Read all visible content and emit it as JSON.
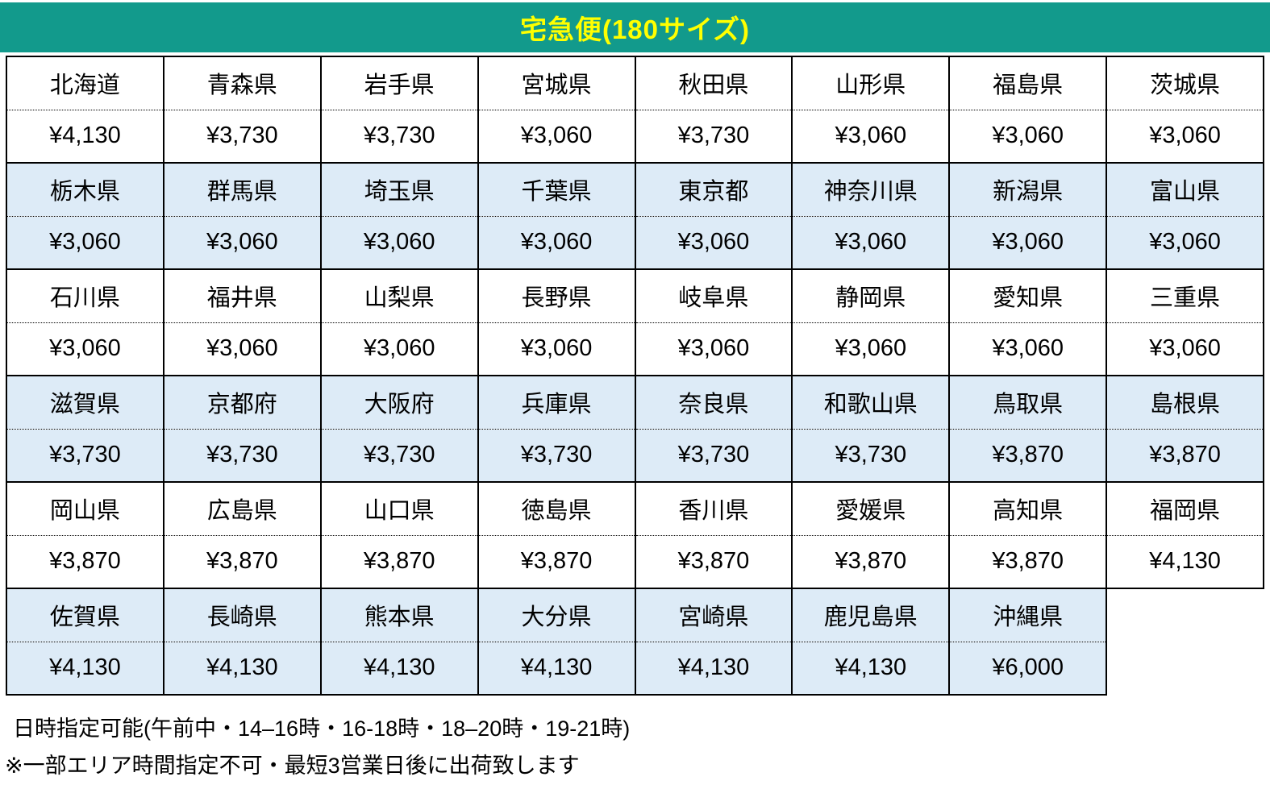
{
  "title": "宅急便(180サイズ)",
  "colors": {
    "header_bg": "#129A8C",
    "title_text": "#FFFF00",
    "shaded_row_bg": "#DDEBF7",
    "border": "#000000",
    "cell_text": "#000000"
  },
  "table": {
    "row_pairs": [
      {
        "shaded": false,
        "cells": [
          {
            "name": "北海道",
            "price": "¥4,130"
          },
          {
            "name": "青森県",
            "price": "¥3,730"
          },
          {
            "name": "岩手県",
            "price": "¥3,730"
          },
          {
            "name": "宮城県",
            "price": "¥3,060"
          },
          {
            "name": "秋田県",
            "price": "¥3,730"
          },
          {
            "name": "山形県",
            "price": "¥3,060"
          },
          {
            "name": "福島県",
            "price": "¥3,060"
          },
          {
            "name": "茨城県",
            "price": "¥3,060"
          }
        ]
      },
      {
        "shaded": true,
        "cells": [
          {
            "name": "栃木県",
            "price": "¥3,060"
          },
          {
            "name": "群馬県",
            "price": "¥3,060"
          },
          {
            "name": "埼玉県",
            "price": "¥3,060"
          },
          {
            "name": "千葉県",
            "price": "¥3,060"
          },
          {
            "name": "東京都",
            "price": "¥3,060"
          },
          {
            "name": "神奈川県",
            "price": "¥3,060"
          },
          {
            "name": "新潟県",
            "price": "¥3,060"
          },
          {
            "name": "富山県",
            "price": "¥3,060"
          }
        ]
      },
      {
        "shaded": false,
        "cells": [
          {
            "name": "石川県",
            "price": "¥3,060"
          },
          {
            "name": "福井県",
            "price": "¥3,060"
          },
          {
            "name": "山梨県",
            "price": "¥3,060"
          },
          {
            "name": "長野県",
            "price": "¥3,060"
          },
          {
            "name": "岐阜県",
            "price": "¥3,060"
          },
          {
            "name": "静岡県",
            "price": "¥3,060"
          },
          {
            "name": "愛知県",
            "price": "¥3,060"
          },
          {
            "name": "三重県",
            "price": "¥3,060"
          }
        ]
      },
      {
        "shaded": true,
        "cells": [
          {
            "name": "滋賀県",
            "price": "¥3,730"
          },
          {
            "name": "京都府",
            "price": "¥3,730"
          },
          {
            "name": "大阪府",
            "price": "¥3,730"
          },
          {
            "name": "兵庫県",
            "price": "¥3,730"
          },
          {
            "name": "奈良県",
            "price": "¥3,730"
          },
          {
            "name": "和歌山県",
            "price": "¥3,730"
          },
          {
            "name": "鳥取県",
            "price": "¥3,870"
          },
          {
            "name": "島根県",
            "price": "¥3,870"
          }
        ]
      },
      {
        "shaded": false,
        "cells": [
          {
            "name": "岡山県",
            "price": "¥3,870"
          },
          {
            "name": "広島県",
            "price": "¥3,870"
          },
          {
            "name": "山口県",
            "price": "¥3,870"
          },
          {
            "name": "徳島県",
            "price": "¥3,870"
          },
          {
            "name": "香川県",
            "price": "¥3,870"
          },
          {
            "name": "愛媛県",
            "price": "¥3,870"
          },
          {
            "name": "高知県",
            "price": "¥3,870"
          },
          {
            "name": "福岡県",
            "price": "¥4,130"
          }
        ]
      },
      {
        "shaded": true,
        "cells": [
          {
            "name": "佐賀県",
            "price": "¥4,130"
          },
          {
            "name": "長崎県",
            "price": "¥4,130"
          },
          {
            "name": "熊本県",
            "price": "¥4,130"
          },
          {
            "name": "大分県",
            "price": "¥4,130"
          },
          {
            "name": "宮崎県",
            "price": "¥4,130"
          },
          {
            "name": "鹿児島県",
            "price": "¥4,130"
          },
          {
            "name": "沖縄県",
            "price": "¥6,000"
          }
        ]
      }
    ]
  },
  "notes": {
    "delivery_times": "日時指定可能(午前中・14–16時・16-18時・18–20時・19-21時)",
    "area_restriction": "※一部エリア時間指定不可・最短3営業日後に出荷致します"
  }
}
